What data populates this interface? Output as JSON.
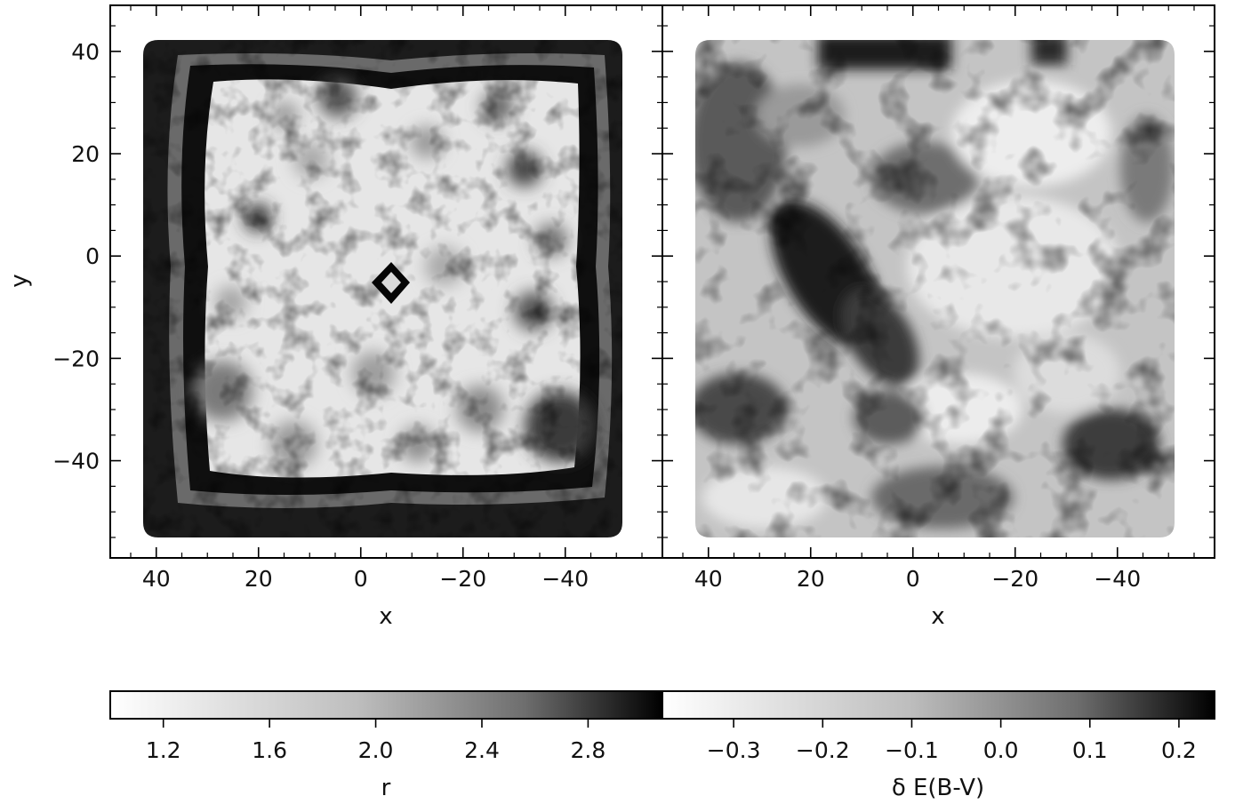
{
  "chart_data": [
    {
      "type": "heatmap",
      "panel": "left",
      "title": "",
      "xlabel": "x",
      "ylabel": "y",
      "xlim": [
        49,
        -59
      ],
      "ylim": [
        -59,
        49
      ],
      "x_inverted": true,
      "xticks": [
        40,
        20,
        0,
        -20,
        -40
      ],
      "xtick_labels": [
        "40",
        "20",
        "0",
        "−20",
        "−40"
      ],
      "yticks": [
        40,
        20,
        0,
        -20,
        -40
      ],
      "ytick_labels": [
        "40",
        "20",
        "0",
        "−20",
        "−40"
      ],
      "footprint": {
        "x_range": [
          43,
          -52
        ],
        "y_range": [
          -55,
          44
        ]
      },
      "colormap": "Greys",
      "color_scale": {
        "label": "r",
        "min": 1.0,
        "max": 3.08,
        "ticks": [
          1.2,
          1.6,
          2.0,
          2.4,
          2.8
        ],
        "tick_labels": [
          "1.2",
          "1.6",
          "2.0",
          "2.4",
          "2.8"
        ]
      },
      "features": [
        {
          "kind": "dark_border_ring",
          "value_r": 2.9
        },
        {
          "kind": "dark_center_diamond",
          "x": -6,
          "y": -5,
          "value_r": 2.95
        },
        {
          "kind": "bright_interior",
          "value_r": 1.2
        }
      ],
      "grid": false,
      "legend": "none"
    },
    {
      "type": "heatmap",
      "panel": "right",
      "title": "",
      "xlabel": "x",
      "ylabel": "",
      "xlim": [
        49,
        -59
      ],
      "ylim": [
        -59,
        49
      ],
      "x_inverted": true,
      "xticks": [
        40,
        20,
        0,
        -20,
        -40
      ],
      "xtick_labels": [
        "40",
        "20",
        "0",
        "−20",
        "−40"
      ],
      "footprint": {
        "x_range": [
          43,
          -52
        ],
        "y_range": [
          -55,
          44
        ]
      },
      "colormap": "Greys",
      "color_scale": {
        "label": "δ E(B-V)",
        "min": -0.38,
        "max": 0.24,
        "ticks": [
          -0.3,
          -0.2,
          -0.1,
          0.0,
          0.1,
          0.2
        ],
        "tick_labels": [
          "−0.3",
          "−0.2",
          "−0.1",
          "0.0",
          "0.1",
          "0.2"
        ]
      },
      "features": [
        {
          "kind": "dark_diagonal_band",
          "from": [
            25,
            5
          ],
          "to": [
            5,
            -25
          ],
          "value": 0.2
        },
        {
          "kind": "dark_top_strip",
          "y": 40,
          "value": 0.15
        },
        {
          "kind": "bright_region",
          "x": -20,
          "y": 10,
          "value": -0.3
        }
      ],
      "grid": false,
      "legend": "none"
    }
  ]
}
